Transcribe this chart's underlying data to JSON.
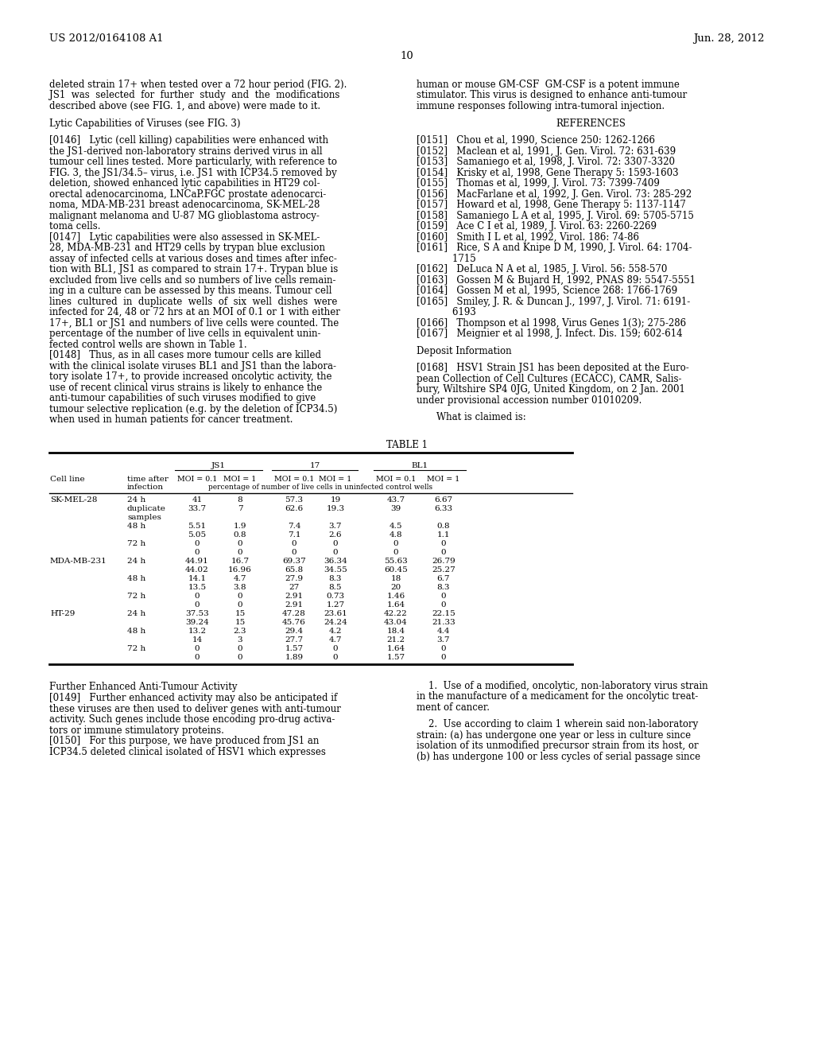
{
  "header_left": "US 2012/0164108 A1",
  "header_right": "Jun. 28, 2012",
  "page_number": "10",
  "background_color": "#ffffff",
  "left_column": [
    "deleted strain 17+ when tested over a 72 hour period (FIG. 2).",
    "JS1  was  selected  for  further  study  and  the  modifications",
    "described above (see FIG. 1, and above) were made to it.",
    "",
    "Lytic Capabilities of Viruses (see FIG. 3)",
    "",
    "[0146]   Lytic (cell killing) capabilities were enhanced with",
    "the JS1-derived non-laboratory strains derived virus in all",
    "tumour cell lines tested. More particularly, with reference to",
    "FIG. 3, the JS1/34.5– virus, i.e. JS1 with ICP34.5 removed by",
    "deletion, showed enhanced lytic capabilities in HT29 col-",
    "orectal adenocarcinoma, LNCaP.FGC prostate adenocarci-",
    "noma, MDA-MB-231 breast adenocarcinoma, SK-MEL-28",
    "malignant melanoma and U-87 MG glioblastoma astrocy-",
    "toma cells.",
    "[0147]   Lytic capabilities were also assessed in SK-MEL-",
    "28, MDA-MB-231 and HT29 cells by trypan blue exclusion",
    "assay of infected cells at various doses and times after infec-",
    "tion with BL1, JS1 as compared to strain 17+. Trypan blue is",
    "excluded from live cells and so numbers of live cells remain-",
    "ing in a culture can be assessed by this means. Tumour cell",
    "lines  cultured  in  duplicate  wells  of  six  well  dishes  were",
    "infected for 24, 48 or 72 hrs at an MOI of 0.1 or 1 with either",
    "17+, BL1 or JS1 and numbers of live cells were counted. The",
    "percentage of the number of live cells in equivalent unin-",
    "fected control wells are shown in Table 1.",
    "[0148]   Thus, as in all cases more tumour cells are killed",
    "with the clinical isolate viruses BL1 and JS1 than the labora-",
    "tory isolate 17+, to provide increased oncolytic activity, the",
    "use of recent clinical virus strains is likely to enhance the",
    "anti-tumour capabilities of such viruses modified to give",
    "tumour selective replication (e.g. by the deletion of ICP34.5)",
    "when used in human patients for cancer treatment."
  ],
  "right_column": [
    "human or mouse GM-CSF  GM-CSF is a potent immune",
    "stimulator. This virus is designed to enhance anti-tumour",
    "immune responses following intra-tumoral injection.",
    "",
    "REFERENCES",
    "",
    "[0151]   Chou et al, 1990, Science 250: 1262-1266",
    "[0152]   Maclean et al, 1991, J. Gen. Virol. 72: 631-639",
    "[0153]   Samaniego et al, 1998, J. Virol. 72: 3307-3320",
    "[0154]   Krisky et al, 1998, Gene Therapy 5: 1593-1603",
    "[0155]   Thomas et al, 1999, J. Virol. 73: 7399-7409",
    "[0156]   MacFarlane et al, 1992, J. Gen. Virol. 73: 285-292",
    "[0157]   Howard et al, 1998, Gene Therapy 5: 1137-1147",
    "[0158]   Samaniego L A et al, 1995, J. Virol. 69: 5705-5715",
    "[0159]   Ace C I et al, 1989, J. Virol. 63: 2260-2269",
    "[0160]   Smith I L et al, 1992, Virol. 186: 74-86",
    "[0161]   Rice, S A and Knipe D M, 1990, J. Virol. 64: 1704-",
    "            1715",
    "[0162]   DeLuca N A et al, 1985, J. Virol. 56: 558-570",
    "[0163]   Gossen M & Bujard H, 1992, PNAS 89: 5547-5551",
    "[0164]   Gossen M et al, 1995, Science 268: 1766-1769",
    "[0165]   Smiley, J. R. & Duncan J., 1997, J. Virol. 71: 6191-",
    "            6193",
    "[0166]   Thompson et al 1998, Virus Genes 1(3); 275-286",
    "[0167]   Meignier et al 1998, J. Infect. Dis. 159; 602-614",
    "",
    "Deposit Information",
    "",
    "[0168]   HSV1 Strain JS1 has been deposited at the Euro-",
    "pean Collection of Cell Cultures (ECACC), CAMR, Salis-",
    "bury, Wiltshire SP4 0JG, United Kingdom, on 2 Jan. 2001",
    "under provisional accession number 01010209.",
    "",
    "What is claimed is:"
  ],
  "table_title": "TABLE 1",
  "table_data": [
    [
      "SK-MEL-28",
      "24 h",
      "41",
      "8",
      "57.3",
      "19",
      "43.7",
      "6.67"
    ],
    [
      "",
      "duplicate",
      "33.7",
      "7",
      "62.6",
      "19.3",
      "39",
      "6.33"
    ],
    [
      "",
      "samples",
      "",
      "",
      "",
      "",
      "",
      ""
    ],
    [
      "",
      "48 h",
      "5.51",
      "1.9",
      "7.4",
      "3.7",
      "4.5",
      "0.8"
    ],
    [
      "",
      "",
      "5.05",
      "0.8",
      "7.1",
      "2.6",
      "4.8",
      "1.1"
    ],
    [
      "",
      "72 h",
      "0",
      "0",
      "0",
      "0",
      "0",
      "0"
    ],
    [
      "",
      "",
      "0",
      "0",
      "0",
      "0",
      "0",
      "0"
    ],
    [
      "MDA-MB-231",
      "24 h",
      "44.91",
      "16.7",
      "69.37",
      "36.34",
      "55.63",
      "26.79"
    ],
    [
      "",
      "",
      "44.02",
      "16.96",
      "65.8",
      "34.55",
      "60.45",
      "25.27"
    ],
    [
      "",
      "48 h",
      "14.1",
      "4.7",
      "27.9",
      "8.3",
      "18",
      "6.7"
    ],
    [
      "",
      "",
      "13.5",
      "3.8",
      "27",
      "8.5",
      "20",
      "8.3"
    ],
    [
      "",
      "72 h",
      "0",
      "0",
      "2.91",
      "0.73",
      "1.46",
      "0"
    ],
    [
      "",
      "",
      "0",
      "0",
      "2.91",
      "1.27",
      "1.64",
      "0"
    ],
    [
      "HT-29",
      "24 h",
      "37.53",
      "15",
      "47.28",
      "23.61",
      "42.22",
      "22.15"
    ],
    [
      "",
      "",
      "39.24",
      "15",
      "45.76",
      "24.24",
      "43.04",
      "21.33"
    ],
    [
      "",
      "48 h",
      "13.2",
      "2.3",
      "29.4",
      "4.2",
      "18.4",
      "4.4"
    ],
    [
      "",
      "",
      "14",
      "3",
      "27.7",
      "4.7",
      "21.2",
      "3.7"
    ],
    [
      "",
      "72 h",
      "0",
      "0",
      "1.57",
      "0",
      "1.64",
      "0"
    ],
    [
      "",
      "",
      "0",
      "0",
      "1.89",
      "0",
      "1.57",
      "0"
    ]
  ],
  "table_subheader": "percentage of number of live cells in uninfected control wells",
  "bottom_left_heading": "Further Enhanced Anti-Tumour Activity",
  "bottom_left_text": [
    "[0149]   Further enhanced activity may also be anticipated if",
    "these viruses are then used to deliver genes with anti-tumour",
    "activity. Such genes include those encoding pro-drug activa-",
    "tors or immune stimulatory proteins.",
    "[0150]   For this purpose, we have produced from JS1 an",
    "ICP34.5 deleted clinical isolated of HSV1 which expresses"
  ],
  "bottom_right_text": [
    "    1.  Use of a modified, oncolytic, non-laboratory virus strain",
    "in the manufacture of a medicament for the oncolytic treat-",
    "ment of cancer.",
    "",
    "    2.  Use according to claim 1 wherein said non-laboratory",
    "strain: (a) has undergone one year or less in culture since",
    "isolation of its unmodified precursor strain from its host, or",
    "(b) has undergone 100 or less cycles of serial passage since"
  ]
}
